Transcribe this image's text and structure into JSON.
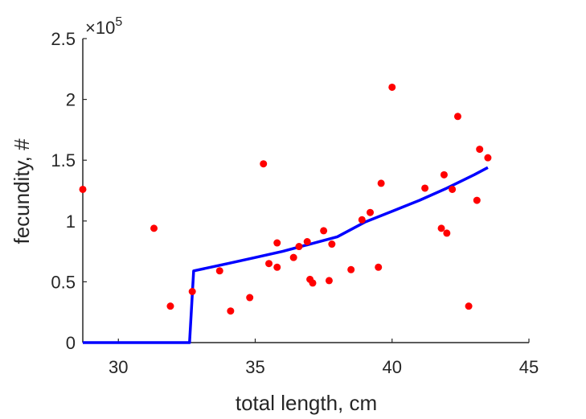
{
  "chart_data": {
    "type": "scatter",
    "xlabel": "total length, cm",
    "ylabel": "fecundity, #",
    "y_exponent": {
      "base": "×10",
      "power": "5"
    },
    "xlim": [
      28.7,
      45
    ],
    "ylim": [
      0,
      2.5
    ],
    "xticks": [
      30,
      35,
      40,
      45
    ],
    "yticks": [
      0,
      0.5,
      1,
      1.5,
      2,
      2.5
    ],
    "xtick_labels": [
      "30",
      "35",
      "40",
      "45"
    ],
    "ytick_labels": [
      "0",
      "0.5",
      "1",
      "1.5",
      "2",
      "2.5"
    ],
    "grid": false,
    "series": [
      {
        "kind": "scatter",
        "color": "#ff0000",
        "points": [
          [
            28.7,
            1.26
          ],
          [
            31.3,
            0.94
          ],
          [
            31.9,
            0.3
          ],
          [
            32.7,
            0.42
          ],
          [
            33.7,
            0.59
          ],
          [
            34.1,
            0.26
          ],
          [
            34.8,
            0.37
          ],
          [
            35.3,
            1.47
          ],
          [
            35.5,
            0.65
          ],
          [
            35.8,
            0.62
          ],
          [
            35.8,
            0.82
          ],
          [
            36.4,
            0.7
          ],
          [
            36.6,
            0.79
          ],
          [
            36.9,
            0.83
          ],
          [
            37.0,
            0.52
          ],
          [
            37.1,
            0.49
          ],
          [
            37.5,
            0.92
          ],
          [
            37.7,
            0.51
          ],
          [
            37.8,
            0.81
          ],
          [
            38.5,
            0.6
          ],
          [
            38.9,
            1.01
          ],
          [
            39.2,
            1.07
          ],
          [
            39.5,
            0.62
          ],
          [
            39.6,
            1.31
          ],
          [
            40.0,
            2.1
          ],
          [
            41.2,
            1.27
          ],
          [
            41.8,
            0.94
          ],
          [
            41.9,
            1.38
          ],
          [
            42.0,
            0.9
          ],
          [
            42.2,
            1.26
          ],
          [
            42.4,
            1.86
          ],
          [
            42.8,
            0.3
          ],
          [
            43.1,
            1.17
          ],
          [
            43.2,
            1.59
          ],
          [
            43.5,
            1.52
          ]
        ]
      },
      {
        "kind": "line",
        "color": "#0000ff",
        "points": [
          [
            28.7,
            0
          ],
          [
            32.6,
            0
          ],
          [
            32.75,
            0.59
          ],
          [
            34,
            0.65
          ],
          [
            35,
            0.7
          ],
          [
            36,
            0.75
          ],
          [
            37,
            0.81
          ],
          [
            38,
            0.87
          ],
          [
            39,
            0.99
          ],
          [
            40,
            1.08
          ],
          [
            41,
            1.17
          ],
          [
            42,
            1.27
          ],
          [
            43,
            1.38
          ],
          [
            43.5,
            1.44
          ]
        ]
      }
    ]
  }
}
